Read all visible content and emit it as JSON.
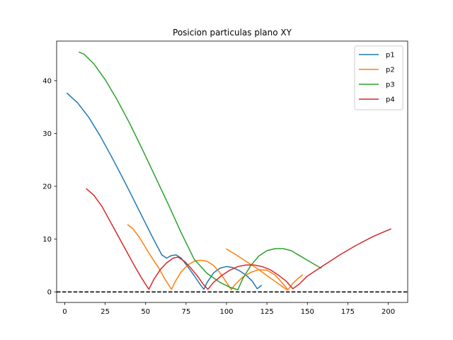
{
  "chart_data": {
    "type": "line",
    "title": "Posicion particulas plano XY",
    "xlabel": "",
    "ylabel": "",
    "xlim": [
      -5,
      212
    ],
    "ylim": [
      -2,
      47.5
    ],
    "xticks": [
      0,
      25,
      50,
      75,
      100,
      125,
      150,
      175,
      200
    ],
    "yticks": [
      0,
      10,
      20,
      30,
      40
    ],
    "grid": false,
    "legend": "top-right",
    "reference_line": {
      "y": 0,
      "style": "dashed",
      "color": "#000000"
    },
    "series": [
      {
        "name": "p1",
        "color": "#1f77b4",
        "points": [
          [
            1.5,
            37.6
          ],
          [
            8,
            35.8
          ],
          [
            15,
            33.0
          ],
          [
            22,
            29.5
          ],
          [
            30,
            25.0
          ],
          [
            38,
            20.3
          ],
          [
            46,
            15.4
          ],
          [
            54,
            10.5
          ],
          [
            60,
            7.0
          ],
          [
            63,
            6.4
          ],
          [
            66,
            6.9
          ],
          [
            69,
            7.0
          ],
          [
            72,
            6.4
          ],
          [
            76,
            4.8
          ],
          [
            80,
            3.1
          ],
          [
            84,
            1.3
          ],
          [
            86,
            0.5
          ],
          [
            88,
            1.8
          ],
          [
            92,
            3.6
          ],
          [
            96,
            4.5
          ],
          [
            100,
            4.8
          ],
          [
            104,
            4.6
          ],
          [
            108,
            4.0
          ],
          [
            112,
            3.2
          ],
          [
            116,
            2.0
          ],
          [
            119,
            0.6
          ],
          [
            121.5,
            1.2
          ]
        ]
      },
      {
        "name": "p2",
        "color": "#ff7f0e",
        "points": [
          [
            39,
            12.7
          ],
          [
            42,
            12.0
          ],
          [
            46,
            10.4
          ],
          [
            50,
            8.4
          ],
          [
            54,
            6.4
          ],
          [
            58,
            4.6
          ],
          [
            62,
            2.4
          ],
          [
            66,
            0.5
          ],
          [
            68,
            1.8
          ],
          [
            72,
            3.8
          ],
          [
            76,
            5.1
          ],
          [
            80,
            5.8
          ],
          [
            84,
            6.0
          ],
          [
            88,
            5.8
          ],
          [
            92,
            5.0
          ],
          [
            96,
            3.6
          ],
          [
            100,
            1.8
          ],
          [
            103,
            0.4
          ],
          [
            105,
            1.3
          ],
          [
            110,
            2.8
          ],
          [
            115,
            3.7
          ],
          [
            120,
            4.2
          ],
          [
            125,
            4.1
          ],
          [
            130,
            3.2
          ],
          [
            135,
            1.5
          ],
          [
            138,
            0.4
          ],
          [
            141,
            1.6
          ],
          [
            144,
            2.5
          ],
          [
            147,
            3.2
          ],
          [
            100,
            8.1
          ],
          [
            105,
            7.2
          ],
          [
            110,
            6.2
          ],
          [
            115,
            5.2
          ],
          [
            120,
            4.2
          ],
          [
            125,
            3.1
          ],
          [
            130,
            2.0
          ],
          [
            135,
            0.9
          ],
          [
            137.5,
            0.4
          ]
        ]
      },
      {
        "name": "p3",
        "color": "#2ca02c",
        "points": [
          [
            9,
            45.4
          ],
          [
            12,
            45.0
          ],
          [
            18,
            43.2
          ],
          [
            25,
            40.2
          ],
          [
            32,
            36.6
          ],
          [
            40,
            32.0
          ],
          [
            48,
            27.0
          ],
          [
            56,
            21.8
          ],
          [
            64,
            16.6
          ],
          [
            72,
            11.2
          ],
          [
            80,
            6.2
          ],
          [
            88,
            3.5
          ],
          [
            96,
            1.8
          ],
          [
            102,
            0.9
          ],
          [
            107,
            0.4
          ],
          [
            110,
            2.5
          ],
          [
            115,
            5.0
          ],
          [
            120,
            6.8
          ],
          [
            125,
            7.8
          ],
          [
            130,
            8.2
          ],
          [
            135,
            8.2
          ],
          [
            140,
            7.8
          ],
          [
            145,
            6.9
          ],
          [
            150,
            6.0
          ],
          [
            155,
            5.1
          ],
          [
            158.5,
            4.5
          ]
        ]
      },
      {
        "name": "p4",
        "color": "#d62728",
        "points": [
          [
            13.5,
            19.5
          ],
          [
            18,
            18.3
          ],
          [
            23,
            16.2
          ],
          [
            28,
            13.4
          ],
          [
            33,
            10.6
          ],
          [
            38,
            7.8
          ],
          [
            43,
            5.0
          ],
          [
            48,
            2.4
          ],
          [
            52,
            0.5
          ],
          [
            55,
            2.3
          ],
          [
            59,
            4.2
          ],
          [
            63,
            5.5
          ],
          [
            67,
            6.4
          ],
          [
            70,
            6.6
          ],
          [
            74,
            5.8
          ],
          [
            78,
            4.5
          ],
          [
            82,
            3.0
          ],
          [
            86,
            1.3
          ],
          [
            88.5,
            0.5
          ],
          [
            92,
            1.8
          ],
          [
            97,
            3.1
          ],
          [
            102,
            4.1
          ],
          [
            107,
            4.8
          ],
          [
            112,
            5.1
          ],
          [
            117,
            5.1
          ],
          [
            122,
            4.8
          ],
          [
            127,
            4.2
          ],
          [
            132,
            3.2
          ],
          [
            137,
            2.0
          ],
          [
            141,
            0.6
          ],
          [
            145,
            1.5
          ],
          [
            150,
            3.0
          ],
          [
            160,
            5.0
          ],
          [
            170,
            7.0
          ],
          [
            180,
            8.8
          ],
          [
            190,
            10.4
          ],
          [
            196,
            11.2
          ],
          [
            201.5,
            11.9
          ]
        ]
      }
    ]
  }
}
